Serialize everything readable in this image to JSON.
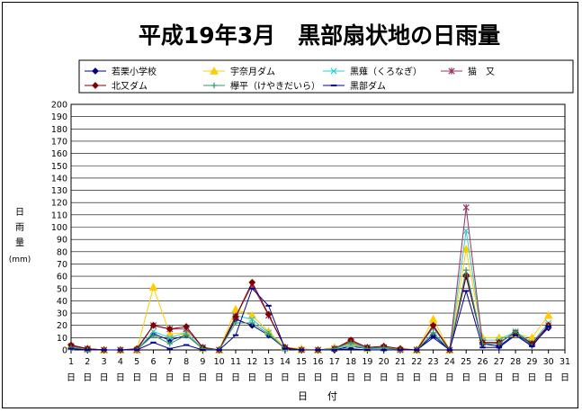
{
  "chart_data": {
    "type": "line",
    "title": "平成19年3月　黒部扇状地の日雨量",
    "ylabel": [
      "日",
      "雨",
      "量",
      "(mm)"
    ],
    "xlabel": "日　　付",
    "ylim": [
      0,
      200
    ],
    "ytick_step": 10,
    "grid": "horizontal",
    "legend_position": "top",
    "x_tick_numbers": [
      "1",
      "2",
      "3",
      "4",
      "5",
      "6",
      "7",
      "8",
      "9",
      "10",
      "11",
      "12",
      "13",
      "14",
      "15",
      "16",
      "17",
      "18",
      "19",
      "20",
      "21",
      "22",
      "23",
      "24",
      "25",
      "26",
      "27",
      "28",
      "29",
      "30",
      "31"
    ],
    "x_tick_suffix": "日",
    "x": [
      1,
      2,
      3,
      4,
      5,
      6,
      7,
      8,
      9,
      10,
      11,
      12,
      13,
      14,
      15,
      16,
      17,
      18,
      19,
      20,
      21,
      22,
      23,
      24,
      25,
      26,
      27,
      28,
      29,
      30
    ],
    "series": [
      {
        "name": "若栗小学校",
        "color": "#000080",
        "marker": "diamond",
        "values": [
          2,
          0,
          0,
          0,
          0,
          13,
          8,
          12,
          1,
          0,
          25,
          20,
          12,
          1,
          0,
          0,
          0,
          3,
          1,
          1,
          0,
          0,
          12,
          0,
          60,
          5,
          3,
          13,
          4,
          18
        ]
      },
      {
        "name": "宇奈月ダム",
        "color": "#FFCC00",
        "marker": "triangle",
        "values": [
          3,
          1,
          0,
          0,
          0,
          51,
          13,
          14,
          1,
          0,
          33,
          28,
          15,
          2,
          1,
          0,
          2,
          5,
          1,
          2,
          1,
          0,
          25,
          0,
          82,
          10,
          10,
          13,
          10,
          28
        ]
      },
      {
        "name": "黒薙（くろなぎ）",
        "color": "#33CCCC",
        "marker": "x",
        "values": [
          2,
          0,
          0,
          0,
          0,
          15,
          10,
          14,
          1,
          0,
          28,
          25,
          14,
          1,
          0,
          0,
          1,
          4,
          1,
          1,
          0,
          0,
          18,
          0,
          97,
          8,
          8,
          15,
          6,
          22
        ]
      },
      {
        "name": "猫　又",
        "color": "#993366",
        "marker": "star",
        "values": [
          3,
          1,
          0,
          0,
          0,
          20,
          17,
          17,
          2,
          0,
          27,
          53,
          28,
          2,
          0,
          0,
          1,
          7,
          2,
          2,
          0,
          0,
          19,
          0,
          116,
          6,
          6,
          14,
          5,
          20
        ]
      },
      {
        "name": "北又ダム",
        "color": "#800000",
        "marker": "diamond",
        "values": [
          4,
          1,
          0,
          0,
          1,
          20,
          17,
          19,
          2,
          0,
          27,
          55,
          29,
          2,
          0,
          0,
          1,
          8,
          2,
          3,
          1,
          0,
          20,
          0,
          61,
          6,
          6,
          14,
          5,
          20
        ]
      },
      {
        "name": "欅平（けやきだいら）",
        "color": "#339966",
        "marker": "plus",
        "values": [
          2,
          0,
          0,
          0,
          0,
          12,
          5,
          12,
          1,
          0,
          22,
          22,
          13,
          1,
          0,
          0,
          1,
          6,
          1,
          2,
          0,
          0,
          14,
          0,
          65,
          5,
          5,
          15,
          3,
          19
        ]
      },
      {
        "name": "黒部ダム",
        "color": "#000099",
        "marker": "dash",
        "values": [
          1,
          0,
          0,
          0,
          0,
          6,
          1,
          4,
          0,
          0,
          12,
          50,
          36,
          1,
          0,
          0,
          0,
          1,
          0,
          0,
          0,
          0,
          10,
          0,
          48,
          2,
          2,
          12,
          3,
          19
        ]
      }
    ]
  }
}
